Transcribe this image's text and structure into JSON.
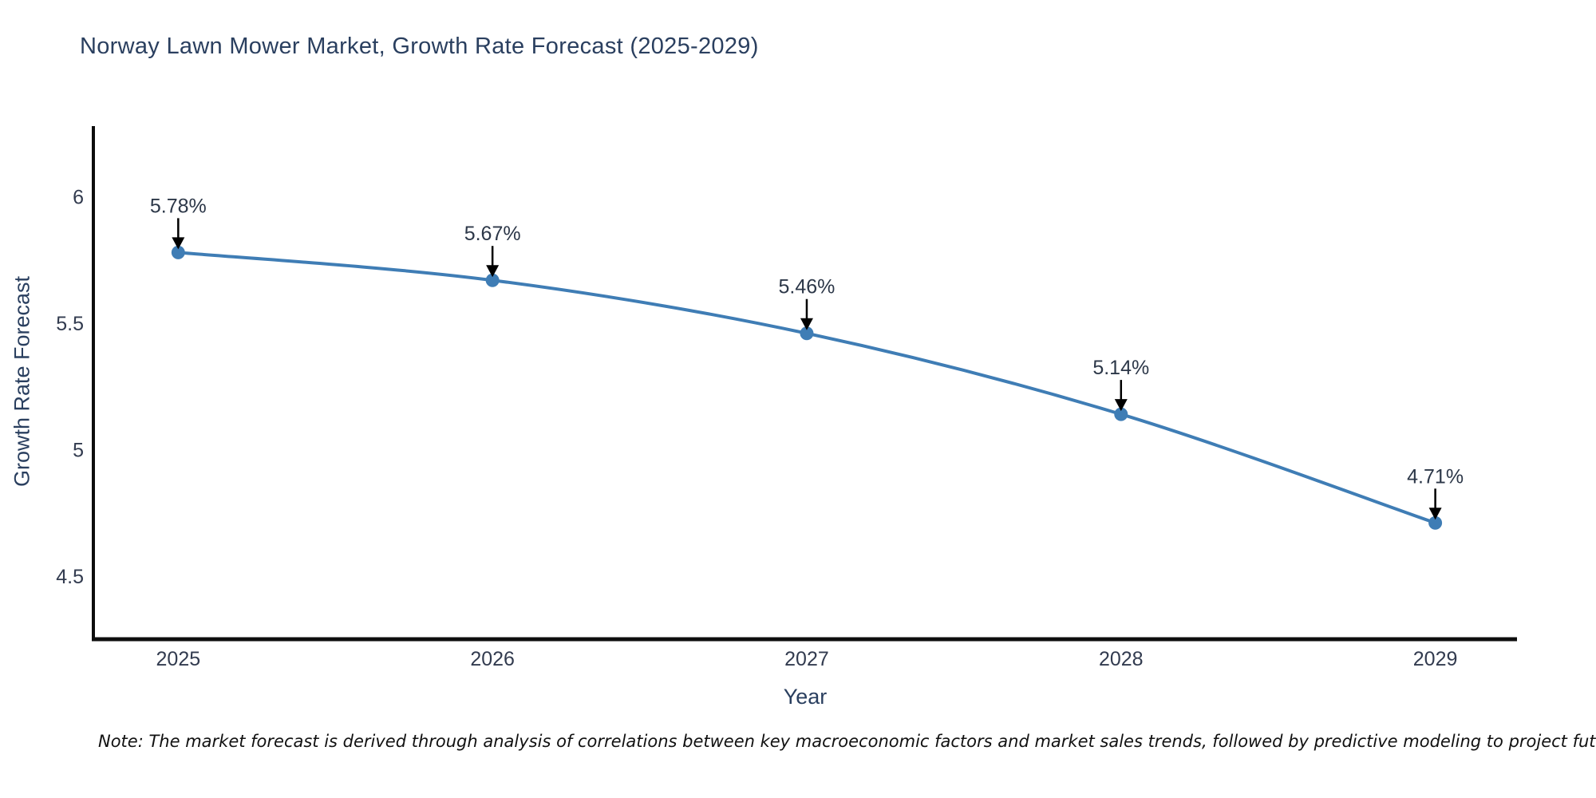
{
  "title": "Norway Lawn Mower Market, Growth Rate Forecast (2025-2029)",
  "note": "Note: The market forecast is derived through analysis of correlations between key macroeconomic factors and market sales trends, followed by predictive modeling to project future sales",
  "chart_data": {
    "type": "line",
    "title": "Norway Lawn Mower Market, Growth Rate Forecast (2025-2029)",
    "xlabel": "Year",
    "ylabel": "Growth Rate Forecast",
    "x": [
      2025,
      2026,
      2027,
      2028,
      2029
    ],
    "categories": [
      "2025",
      "2026",
      "2027",
      "2028",
      "2029"
    ],
    "values": [
      5.78,
      5.67,
      5.46,
      5.14,
      4.71
    ],
    "point_labels": [
      "5.78%",
      "5.67%",
      "5.46%",
      "5.14%",
      "4.71%"
    ],
    "yticks": [
      4.5,
      5,
      5.5,
      6
    ],
    "ytick_labels": [
      "4.5",
      "5",
      "5.5",
      "6"
    ],
    "xlim": [
      2024.73,
      2029.26
    ],
    "ylim": [
      4.25,
      6.28
    ],
    "grid": false,
    "legend": "none",
    "line_color": "#3f7db5",
    "marker_color": "#3f7db5",
    "axis_color": "#0d0d0d",
    "arrow_color": "#000000"
  },
  "colors": {
    "background": "#ffffff",
    "title_text": "#2a3f5f",
    "tick_text": "#323b4f"
  }
}
